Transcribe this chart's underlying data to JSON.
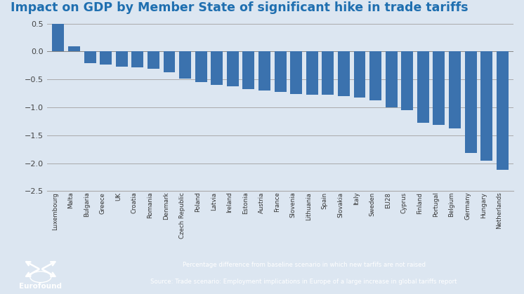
{
  "title": "Impact on GDP by Member State of significant hike in trade tariffs",
  "title_color": "#1f6fb0",
  "categories": [
    "Luxembourg",
    "Malta",
    "Bulgaria",
    "Greece",
    "UK",
    "Croatia",
    "Romania",
    "Denmark",
    "Czech Republic",
    "Poland",
    "Latvia",
    "Ireland",
    "Estonia",
    "Austria",
    "France",
    "Slovenia",
    "Lithuania",
    "Spain",
    "Slovakia",
    "Italy",
    "Sweden",
    "EU28",
    "Cyprus",
    "Finland",
    "Portugal",
    "Belgium",
    "Germany",
    "Hungary",
    "Netherlands"
  ],
  "values": [
    0.5,
    0.09,
    -0.21,
    -0.23,
    -0.27,
    -0.29,
    -0.31,
    -0.37,
    -0.49,
    -0.55,
    -0.6,
    -0.63,
    -0.67,
    -0.7,
    -0.73,
    -0.76,
    -0.77,
    -0.78,
    -0.8,
    -0.83,
    -0.87,
    -1.0,
    -1.05,
    -1.28,
    -1.32,
    -1.38,
    -1.82,
    -1.96,
    -2.12
  ],
  "bar_color": "#3b72ae",
  "ylim": [
    -2.5,
    0.5
  ],
  "yticks": [
    -2.5,
    -2.0,
    -1.5,
    -1.0,
    -0.5,
    0,
    0.5
  ],
  "grid_color": "#aaaaaa",
  "background_color": "#dce6f1",
  "footer_bg_color": "#1a5f7a",
  "footer_text_color": "#ffffff",
  "footer_line1": "Percentage difference from baseline scenario in which new tarfifs are not raised",
  "footer_line2": "Source: Trade scenario: Employment implications in Europe of a large increase in global tariffs report",
  "logo_text": "Eurofound"
}
